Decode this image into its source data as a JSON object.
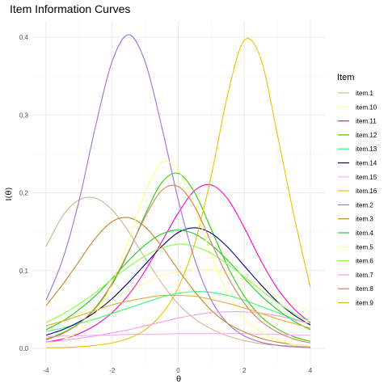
{
  "chart_data": {
    "type": "line",
    "title": "Item Information Curves",
    "xlabel": "θ",
    "ylabel": "I(θ)",
    "xlim": [
      -4,
      4
    ],
    "ylim": [
      0,
      0.41
    ],
    "xticks": [
      -4,
      -2,
      0,
      2,
      4
    ],
    "yticks": [
      0.0,
      0.1,
      0.2,
      0.3,
      0.4
    ],
    "ytick_labels": [
      "0.0",
      "0.1",
      "0.2",
      "0.3",
      "0.4"
    ],
    "grid": true,
    "legend_title": "Item",
    "legend_position": "right",
    "x": [
      -4,
      -3.5,
      -3,
      -2.5,
      -2,
      -1.5,
      -1,
      -0.5,
      0,
      0.5,
      1,
      1.5,
      2,
      2.5,
      3,
      3.5,
      4
    ],
    "series": [
      {
        "name": "item.1",
        "color": "#d2b48c",
        "values": [
          0.131,
          0.17,
          0.191,
          0.193,
          0.178,
          0.15,
          0.116,
          0.084,
          0.057,
          0.038,
          0.025,
          0.016,
          0.01,
          0.006,
          0.004,
          0.003,
          0.002
        ]
      },
      {
        "name": "item.10",
        "color": "#ffff99",
        "values": [
          0.029,
          0.036,
          0.045,
          0.054,
          0.064,
          0.074,
          0.084,
          0.093,
          0.099,
          0.102,
          0.101,
          0.096,
          0.088,
          0.078,
          0.067,
          0.057,
          0.047
        ]
      },
      {
        "name": "item.11",
        "color": "#ff00cc",
        "values": [
          0.008,
          0.012,
          0.019,
          0.03,
          0.046,
          0.069,
          0.1,
          0.137,
          0.174,
          0.203,
          0.21,
          0.192,
          0.155,
          0.113,
          0.077,
          0.051,
          0.033
        ]
      },
      {
        "name": "item.12",
        "color": "#33cc00",
        "values": [
          0.012,
          0.02,
          0.032,
          0.052,
          0.082,
          0.124,
          0.172,
          0.213,
          0.225,
          0.2,
          0.153,
          0.105,
          0.067,
          0.041,
          0.025,
          0.015,
          0.009
        ]
      },
      {
        "name": "item.13",
        "color": "#33ff66",
        "values": [
          0.022,
          0.026,
          0.032,
          0.038,
          0.045,
          0.052,
          0.059,
          0.066,
          0.071,
          0.073,
          0.072,
          0.068,
          0.062,
          0.054,
          0.046,
          0.038,
          0.031
        ]
      },
      {
        "name": "item.14",
        "color": "#000080",
        "values": [
          0.017,
          0.024,
          0.034,
          0.047,
          0.064,
          0.085,
          0.108,
          0.131,
          0.149,
          0.155,
          0.148,
          0.13,
          0.106,
          0.082,
          0.06,
          0.043,
          0.03
        ]
      },
      {
        "name": "item.15",
        "color": "#ffaaff",
        "values": [
          0.015,
          0.016,
          0.016,
          0.017,
          0.017,
          0.018,
          0.018,
          0.018,
          0.019,
          0.019,
          0.019,
          0.019,
          0.019,
          0.018,
          0.018,
          0.017,
          0.017
        ]
      },
      {
        "name": "item.16",
        "color": "#f0c000",
        "values": [
          0.001,
          0.001,
          0.002,
          0.004,
          0.007,
          0.013,
          0.024,
          0.044,
          0.078,
          0.135,
          0.222,
          0.327,
          0.396,
          0.372,
          0.275,
          0.171,
          0.078
        ]
      },
      {
        "name": "item.2",
        "color": "#a070d8",
        "values": [
          0.062,
          0.114,
          0.19,
          0.286,
          0.369,
          0.403,
          0.368,
          0.285,
          0.191,
          0.114,
          0.062,
          0.032,
          0.016,
          0.008,
          0.004,
          0.002,
          0.001
        ]
      },
      {
        "name": "item.3",
        "color": "#c08a20",
        "values": [
          0.055,
          0.082,
          0.112,
          0.142,
          0.163,
          0.168,
          0.156,
          0.131,
          0.101,
          0.073,
          0.049,
          0.032,
          0.021,
          0.013,
          0.008,
          0.005,
          0.003
        ]
      },
      {
        "name": "item.4",
        "color": "#22cc22",
        "values": [
          0.024,
          0.035,
          0.05,
          0.068,
          0.09,
          0.113,
          0.133,
          0.147,
          0.152,
          0.147,
          0.133,
          0.113,
          0.09,
          0.068,
          0.05,
          0.035,
          0.024
        ]
      },
      {
        "name": "item.5",
        "color": "#ffff88",
        "values": [
          0.005,
          0.011,
          0.023,
          0.045,
          0.084,
          0.14,
          0.201,
          0.239,
          0.229,
          0.18,
          0.12,
          0.071,
          0.039,
          0.021,
          0.011,
          0.005,
          0.003
        ]
      },
      {
        "name": "item.6",
        "color": "#88ff44",
        "values": [
          0.033,
          0.044,
          0.057,
          0.072,
          0.089,
          0.105,
          0.119,
          0.129,
          0.134,
          0.131,
          0.122,
          0.108,
          0.092,
          0.075,
          0.059,
          0.045,
          0.034
        ]
      },
      {
        "name": "item.7",
        "color": "#ff99ee",
        "values": [
          0.008,
          0.01,
          0.013,
          0.016,
          0.02,
          0.024,
          0.029,
          0.034,
          0.039,
          0.043,
          0.046,
          0.047,
          0.047,
          0.045,
          0.042,
          0.037,
          0.032
        ]
      },
      {
        "name": "item.8",
        "color": "#d98060",
        "values": [
          0.011,
          0.019,
          0.032,
          0.053,
          0.084,
          0.125,
          0.169,
          0.203,
          0.208,
          0.182,
          0.136,
          0.092,
          0.058,
          0.035,
          0.021,
          0.012,
          0.007
        ]
      },
      {
        "name": "item.9",
        "color": "#e0b030",
        "values": [
          0.029,
          0.035,
          0.042,
          0.049,
          0.056,
          0.061,
          0.065,
          0.068,
          0.068,
          0.067,
          0.063,
          0.058,
          0.052,
          0.045,
          0.038,
          0.032,
          0.026
        ]
      }
    ]
  }
}
